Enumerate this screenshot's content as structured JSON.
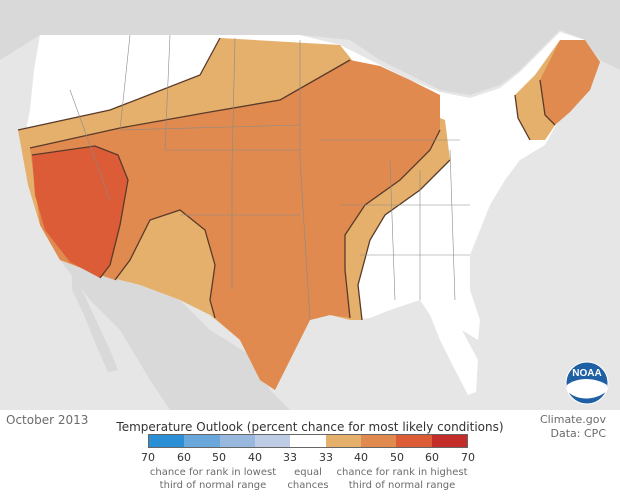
{
  "map": {
    "date": "October 2013",
    "site_credit": "Climate.gov",
    "data_credit": "Data: CPC",
    "logo_text": "NOAA",
    "colors": {
      "ocean": "#e6e6e6",
      "land": "#ffffff",
      "neighbor": "#d9d9d9",
      "above_33": "#e4b06b",
      "above_40": "#e08a4f",
      "above_50": "#db5c36",
      "border": "#5a3a2a"
    }
  },
  "legend": {
    "title": "Temperature Outlook (percent chance for most likely conditions)",
    "swatch_colors": [
      "#2b8fd6",
      "#6aa8dc",
      "#98b8de",
      "#bfcce6",
      "#ffffff",
      "#e4b06b",
      "#e08a4f",
      "#db5c36",
      "#c32d2a"
    ],
    "ticks": [
      "70",
      "60",
      "50",
      "40",
      "33",
      "33",
      "40",
      "50",
      "60",
      "70"
    ],
    "below_note_line1": "chance for rank in lowest",
    "below_note_line2": "third of normal range",
    "equal_note_line1": "equal",
    "equal_note_line2": "chances",
    "above_note_line1": "chance for rank in highest",
    "above_note_line2": "third of normal range"
  }
}
